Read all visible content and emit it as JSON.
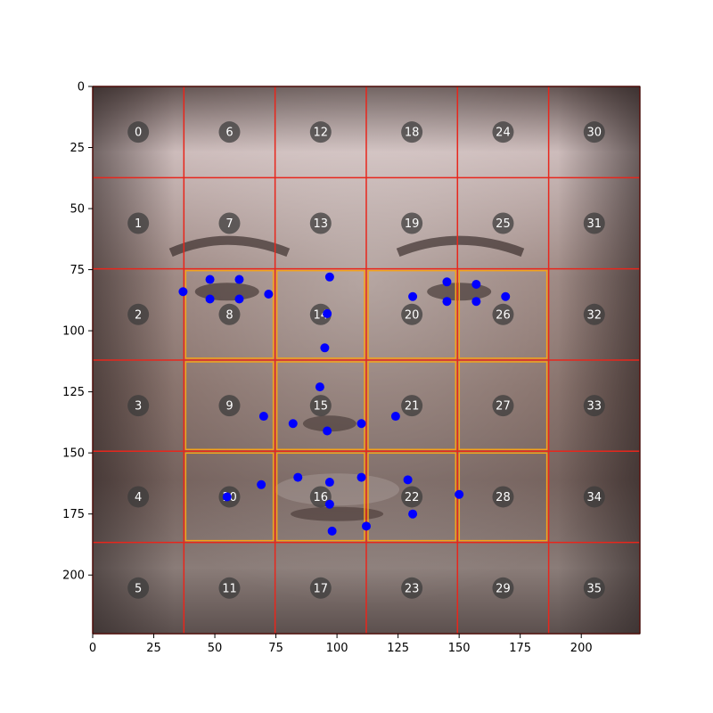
{
  "chart_data": {
    "type": "scatter",
    "title": "",
    "xlabel": "",
    "ylabel": "",
    "xlim": [
      0,
      224
    ],
    "ylim": [
      224,
      0
    ],
    "y_inverted": true,
    "background": "grayscale-tinted face photograph (not reproducible; approximated with gradients)",
    "xticks": [
      0,
      25,
      50,
      75,
      100,
      125,
      150,
      175,
      200
    ],
    "yticks": [
      0,
      25,
      50,
      75,
      100,
      125,
      150,
      175,
      200
    ],
    "grid": {
      "rows": 6,
      "cols": 6,
      "cell_size": 37.33,
      "line_color": "#e8261c",
      "cell_labels": [
        "0",
        "1",
        "2",
        "3",
        "4",
        "5",
        "6",
        "7",
        "8",
        "9",
        "10",
        "11",
        "12",
        "13",
        "14",
        "15",
        "16",
        "17",
        "18",
        "19",
        "20",
        "21",
        "22",
        "23",
        "24",
        "25",
        "26",
        "27",
        "28",
        "29",
        "30",
        "31",
        "32",
        "33",
        "34",
        "35"
      ],
      "marker_color": "#3a3a3a"
    },
    "highlighted_cells": {
      "color": "#f5a31a",
      "cells": [
        "8",
        "9",
        "10",
        "14",
        "15",
        "16",
        "20",
        "21",
        "22",
        "26",
        "27",
        "28"
      ]
    },
    "series": [
      {
        "color": "#0000ff",
        "points": [
          [
            37,
            84
          ],
          [
            48,
            79
          ],
          [
            60,
            79
          ],
          [
            72,
            85
          ],
          [
            48,
            87
          ],
          [
            60,
            87
          ],
          [
            97,
            78
          ],
          [
            96,
            93
          ],
          [
            95,
            107
          ],
          [
            131,
            86
          ],
          [
            145,
            80
          ],
          [
            157,
            81
          ],
          [
            169,
            86
          ],
          [
            145,
            88
          ],
          [
            157,
            88
          ],
          [
            93,
            123
          ],
          [
            70,
            135
          ],
          [
            82,
            138
          ],
          [
            96,
            141
          ],
          [
            110,
            138
          ],
          [
            124,
            135
          ],
          [
            69,
            163
          ],
          [
            84,
            160
          ],
          [
            97,
            162
          ],
          [
            110,
            160
          ],
          [
            129,
            161
          ],
          [
            150,
            167
          ],
          [
            55,
            168
          ],
          [
            97,
            171
          ],
          [
            112,
            180
          ],
          [
            131,
            175
          ],
          [
            98,
            182
          ]
        ]
      }
    ]
  }
}
